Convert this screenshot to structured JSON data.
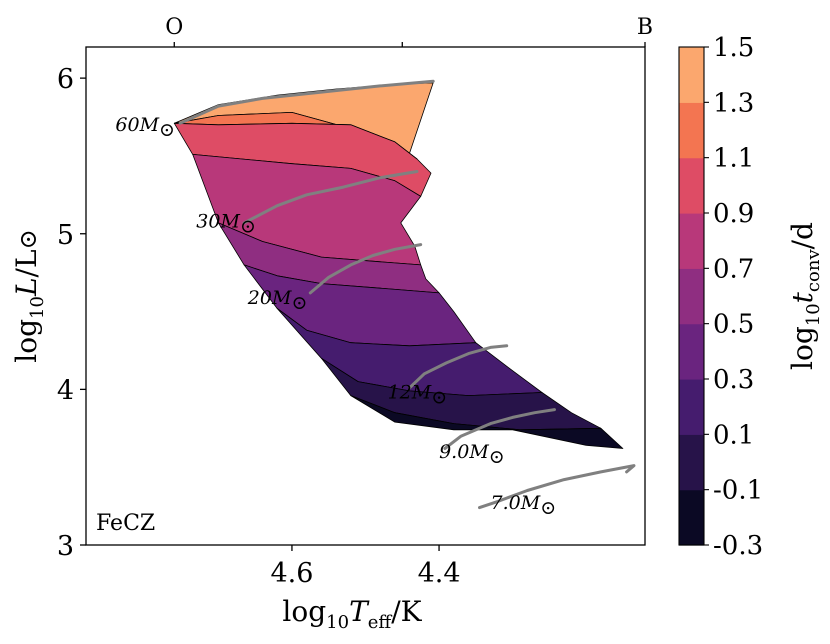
{
  "chart_data": {
    "type": "heatmap",
    "title": "",
    "annotation": "FeCZ",
    "xlabel": "log10 Teff/K",
    "xlabel_parts": {
      "pre": "log",
      "sub": "10",
      "var": "T",
      "var_sub": "eff",
      "post": "/K"
    },
    "ylabel": "log10 L/L⊙",
    "ylabel_parts": {
      "pre": "log",
      "sub": "10",
      "var": "L",
      "post": "/L",
      "sym": "⊙"
    },
    "xlim": [
      4.88,
      4.12
    ],
    "ylim": [
      3.0,
      6.2
    ],
    "x_ticks": [
      {
        "value": 4.6,
        "label": "4.6"
      },
      {
        "value": 4.4,
        "label": "4.4"
      }
    ],
    "y_ticks": [
      {
        "value": 3,
        "label": "3"
      },
      {
        "value": 4,
        "label": "4"
      },
      {
        "value": 5,
        "label": "5"
      },
      {
        "value": 6,
        "label": "6"
      }
    ],
    "top_axis": [
      {
        "value": 4.76,
        "label": "O"
      },
      {
        "value": 4.45,
        "label": ""
      },
      {
        "value": 4.12,
        "label": "B"
      }
    ],
    "colorbar": {
      "label": "log10 tconv/d",
      "label_parts": {
        "pre": "log",
        "sub": "10",
        "var": "t",
        "var_sub": "conv",
        "post": "/d"
      },
      "levels": [
        -0.3,
        -0.1,
        0.1,
        0.3,
        0.5,
        0.7,
        0.9,
        1.1,
        1.3,
        1.5
      ],
      "tick_labels": [
        "-0.3",
        "-0.1",
        "0.1",
        "0.3",
        "0.5",
        "0.7",
        "0.9",
        "1.1",
        "1.3",
        "1.5"
      ],
      "colors": [
        "#0b0924",
        "#271349",
        "#451c6e",
        "#6a247f",
        "#8f2e81",
        "#b8387a",
        "#de4c65",
        "#f37551",
        "#fba76e",
        "#fde1a6"
      ]
    },
    "region_bands": [
      {
        "value": 1.3,
        "polygon": [
          [
            4.76,
            5.71
          ],
          [
            4.7,
            5.83
          ],
          [
            4.62,
            5.89
          ],
          [
            4.54,
            5.93
          ],
          [
            4.46,
            5.96
          ],
          [
            4.408,
            5.97
          ],
          [
            4.445,
            5.45
          ],
          [
            4.47,
            5.55
          ],
          [
            4.5,
            5.65
          ],
          [
            4.6,
            5.78
          ],
          [
            4.7,
            5.76
          ]
        ]
      },
      {
        "value": 1.1,
        "polygon": [
          [
            4.76,
            5.71
          ],
          [
            4.7,
            5.76
          ],
          [
            4.6,
            5.78
          ],
          [
            4.5,
            5.65
          ],
          [
            4.47,
            5.55
          ],
          [
            4.445,
            5.45
          ],
          [
            4.43,
            5.48
          ],
          [
            4.46,
            5.59
          ],
          [
            4.52,
            5.7
          ],
          [
            4.6,
            5.71
          ],
          [
            4.7,
            5.7
          ]
        ]
      },
      {
        "value": 0.9,
        "polygon": [
          [
            4.76,
            5.71
          ],
          [
            4.7,
            5.7
          ],
          [
            4.6,
            5.71
          ],
          [
            4.52,
            5.7
          ],
          [
            4.46,
            5.59
          ],
          [
            4.43,
            5.48
          ],
          [
            4.411,
            5.39
          ],
          [
            4.425,
            5.24
          ],
          [
            4.46,
            5.34
          ],
          [
            4.52,
            5.42
          ],
          [
            4.6,
            5.45
          ],
          [
            4.735,
            5.51
          ]
        ]
      },
      {
        "value": 0.7,
        "polygon": [
          [
            4.735,
            5.51
          ],
          [
            4.6,
            5.45
          ],
          [
            4.52,
            5.42
          ],
          [
            4.46,
            5.34
          ],
          [
            4.425,
            5.24
          ],
          [
            4.452,
            5.07
          ],
          [
            4.433,
            4.92
          ],
          [
            4.425,
            4.8
          ],
          [
            4.48,
            4.82
          ],
          [
            4.56,
            4.85
          ],
          [
            4.64,
            4.95
          ],
          [
            4.7,
            5.07
          ]
        ]
      },
      {
        "value": 0.5,
        "polygon": [
          [
            4.7,
            5.07
          ],
          [
            4.64,
            4.95
          ],
          [
            4.56,
            4.85
          ],
          [
            4.48,
            4.82
          ],
          [
            4.425,
            4.8
          ],
          [
            4.418,
            4.71
          ],
          [
            4.4,
            4.62
          ],
          [
            4.48,
            4.65
          ],
          [
            4.56,
            4.68
          ],
          [
            4.62,
            4.73
          ],
          [
            4.665,
            4.8
          ]
        ]
      },
      {
        "value": 0.3,
        "polygon": [
          [
            4.665,
            4.8
          ],
          [
            4.62,
            4.73
          ],
          [
            4.56,
            4.68
          ],
          [
            4.48,
            4.65
          ],
          [
            4.4,
            4.62
          ],
          [
            4.38,
            4.5
          ],
          [
            4.35,
            4.3
          ],
          [
            4.44,
            4.28
          ],
          [
            4.52,
            4.3
          ],
          [
            4.58,
            4.38
          ],
          [
            4.62,
            4.52
          ]
        ]
      },
      {
        "value": 0.1,
        "polygon": [
          [
            4.62,
            4.52
          ],
          [
            4.58,
            4.38
          ],
          [
            4.52,
            4.3
          ],
          [
            4.44,
            4.28
          ],
          [
            4.35,
            4.3
          ],
          [
            4.3,
            4.12
          ],
          [
            4.26,
            3.98
          ],
          [
            4.36,
            3.96
          ],
          [
            4.44,
            3.99
          ],
          [
            4.51,
            4.05
          ],
          [
            4.56,
            4.2
          ]
        ]
      },
      {
        "value": -0.1,
        "polygon": [
          [
            4.56,
            4.2
          ],
          [
            4.51,
            4.05
          ],
          [
            4.44,
            3.99
          ],
          [
            4.36,
            3.96
          ],
          [
            4.26,
            3.98
          ],
          [
            4.22,
            3.85
          ],
          [
            4.18,
            3.75
          ],
          [
            4.29,
            3.74
          ],
          [
            4.38,
            3.78
          ],
          [
            4.46,
            3.85
          ],
          [
            4.52,
            3.96
          ]
        ]
      },
      {
        "value": -0.3,
        "polygon": [
          [
            4.52,
            3.96
          ],
          [
            4.46,
            3.85
          ],
          [
            4.38,
            3.78
          ],
          [
            4.29,
            3.74
          ],
          [
            4.18,
            3.75
          ],
          [
            4.15,
            3.62
          ],
          [
            4.2,
            3.64
          ],
          [
            4.3,
            3.74
          ],
          [
            4.38,
            3.74
          ],
          [
            4.46,
            3.79
          ]
        ]
      }
    ],
    "tracks": [
      {
        "label": "60",
        "label_at": [
          4.84,
          5.66
        ],
        "points": [
          [
            4.752,
            5.71
          ],
          [
            4.7,
            5.82
          ],
          [
            4.64,
            5.87
          ],
          [
            4.56,
            5.91
          ],
          [
            4.48,
            5.95
          ],
          [
            4.408,
            5.98
          ]
        ]
      },
      {
        "label": "30",
        "label_at": [
          4.73,
          5.04
        ],
        "points": [
          [
            4.665,
            5.07
          ],
          [
            4.62,
            5.18
          ],
          [
            4.58,
            5.25
          ],
          [
            4.53,
            5.3
          ],
          [
            4.48,
            5.36
          ],
          [
            4.43,
            5.4
          ]
        ]
      },
      {
        "label": "20",
        "label_at": [
          4.66,
          4.55
        ],
        "points": [
          [
            4.575,
            4.62
          ],
          [
            4.55,
            4.72
          ],
          [
            4.52,
            4.8
          ],
          [
            4.49,
            4.86
          ],
          [
            4.46,
            4.9
          ],
          [
            4.425,
            4.93
          ]
        ]
      },
      {
        "label": "12",
        "label_at": [
          4.47,
          3.94
        ],
        "points": [
          [
            4.44,
            4.01
          ],
          [
            4.42,
            4.1
          ],
          [
            4.39,
            4.17
          ],
          [
            4.36,
            4.23
          ],
          [
            4.33,
            4.27
          ],
          [
            4.308,
            4.28
          ]
        ]
      },
      {
        "label": "9.0",
        "label_at": [
          4.4,
          3.56
        ],
        "points": [
          [
            4.392,
            3.62
          ],
          [
            4.37,
            3.7
          ],
          [
            4.33,
            3.78
          ],
          [
            4.3,
            3.82
          ],
          [
            4.27,
            3.85
          ],
          [
            4.243,
            3.87
          ]
        ]
      },
      {
        "label": "7.0",
        "label_at": [
          4.33,
          3.23
        ],
        "points": [
          [
            4.345,
            3.24
          ],
          [
            4.32,
            3.28
          ],
          [
            4.28,
            3.35
          ],
          [
            4.23,
            3.42
          ],
          [
            4.18,
            3.47
          ],
          [
            4.135,
            3.51
          ],
          [
            4.145,
            3.47
          ]
        ]
      }
    ],
    "colors": {
      "track": "#808080",
      "frame": "#000000"
    }
  }
}
